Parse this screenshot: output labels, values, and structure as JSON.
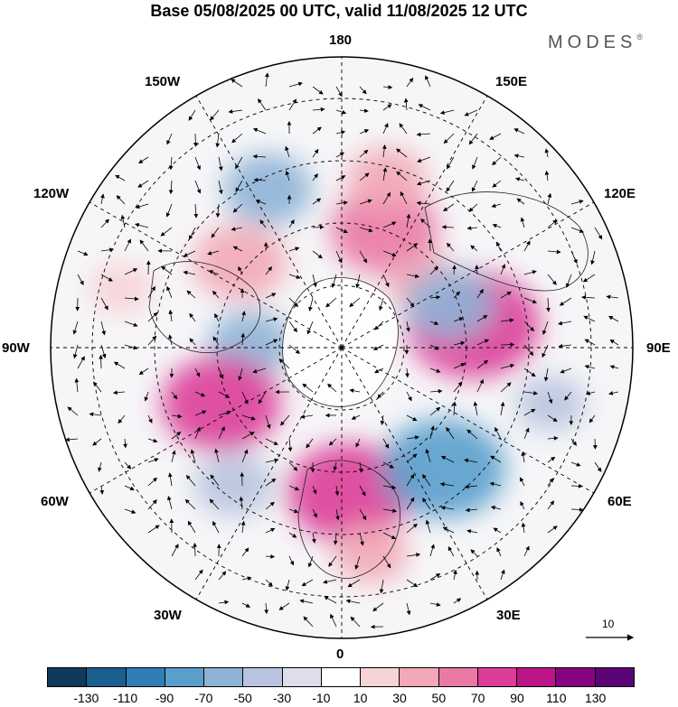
{
  "title": "Base 05/08/2025 00 UTC, valid 11/08/2025 12 UTC",
  "brand": {
    "name": "MODES",
    "mark": "®"
  },
  "longitude_labels": {
    "n180": "180",
    "e150": "150E",
    "e120": "120E",
    "e90": "90E",
    "e60": "60E",
    "e30": "30E",
    "zero": "0",
    "w30": "30W",
    "w60": "60W",
    "w90": "90W",
    "w120": "120W",
    "w150": "150W"
  },
  "reference_vector": {
    "label": "10",
    "magnitude": 10
  },
  "colorbar": {
    "ticks": [
      "-130",
      "-110",
      "-90",
      "-70",
      "-50",
      "-30",
      "-10",
      "10",
      "30",
      "50",
      "70",
      "90",
      "110",
      "130"
    ],
    "colors": [
      "#0f3a5a",
      "#1b5f8f",
      "#2f7fb5",
      "#5a9fcc",
      "#8eb3d6",
      "#b8c4df",
      "#dedde9",
      "#ffffff",
      "#f7d3d6",
      "#f2a8b6",
      "#ea79a6",
      "#db3d99",
      "#bc1587",
      "#88037f",
      "#5a0576"
    ]
  },
  "anomaly_centers": [
    {
      "lon": 100,
      "lat": 58,
      "value": 95,
      "color": "#db3d99"
    },
    {
      "lon": 160,
      "lat": 60,
      "value": 70,
      "color": "#ea79a6"
    },
    {
      "lon": 165,
      "lat": 48,
      "value": 40,
      "color": "#f2a8b6"
    },
    {
      "lon": 128,
      "lat": 65,
      "value": 35,
      "color": "#f2a8b6"
    },
    {
      "lon": -155,
      "lat": 48,
      "value": -50,
      "color": "#8eb3d6"
    },
    {
      "lon": -130,
      "lat": 58,
      "value": 55,
      "color": "#f2a8b6"
    },
    {
      "lon": -92,
      "lat": 68,
      "value": -45,
      "color": "#8eb3d6"
    },
    {
      "lon": -65,
      "lat": 58,
      "value": 80,
      "color": "#db3d99"
    },
    {
      "lon": -38,
      "lat": 48,
      "value": -40,
      "color": "#b8c4df"
    },
    {
      "lon": 3,
      "lat": 55,
      "value": 85,
      "color": "#db3d99"
    },
    {
      "lon": 8,
      "lat": 40,
      "value": 35,
      "color": "#f2a8b6"
    },
    {
      "lon": 40,
      "lat": 52,
      "value": -85,
      "color": "#5a9fcc"
    },
    {
      "lon": 112,
      "lat": 62,
      "value": -50,
      "color": "#8eb3d6"
    },
    {
      "lon": -105,
      "lat": 35,
      "value": 25,
      "color": "#f7d3d6"
    },
    {
      "lon": 75,
      "lat": 38,
      "value": -30,
      "color": "#b8c4df"
    }
  ]
}
